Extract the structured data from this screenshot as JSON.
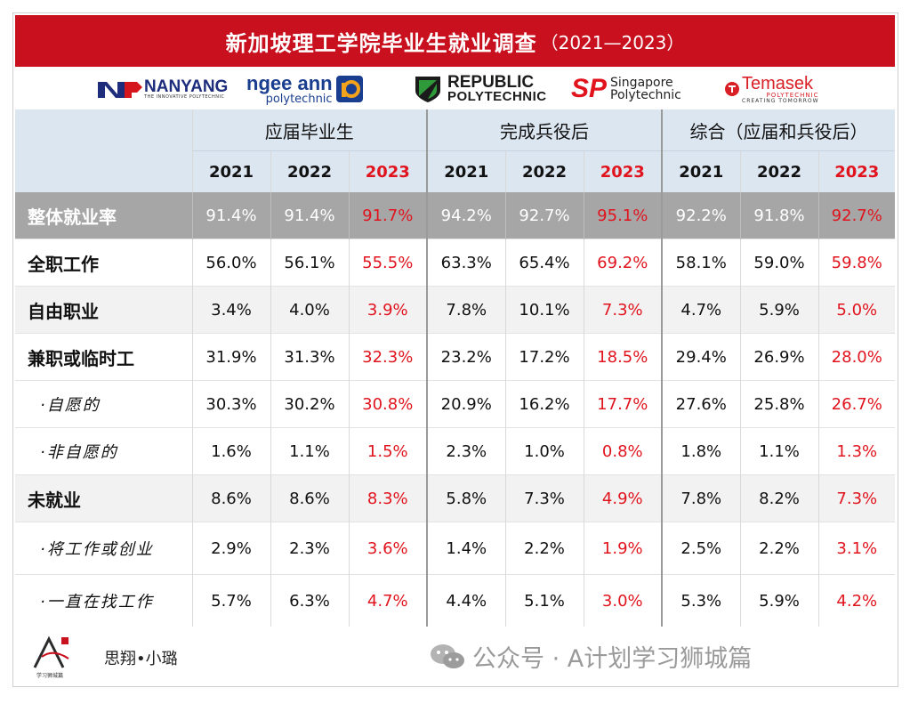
{
  "title": {
    "main": "新加坡理工学院毕业生就业调查",
    "years": "（2021—2023）"
  },
  "logos": [
    {
      "name": "NYP",
      "text": "NANYANG",
      "tag": "THE INNOVATIVE POLYTECHNIC"
    },
    {
      "name": "ngee ann",
      "text": "polytechnic"
    },
    {
      "name": "REPUBLIC",
      "text": "POLYTECHNIC"
    },
    {
      "name": "SP",
      "text1": "Singapore",
      "text2": "Polytechnic"
    },
    {
      "name": "Temasek",
      "text": "POLYTECHNIC",
      "tag": "CREATING TOMORROW"
    }
  ],
  "groups": [
    "应届毕业生",
    "完成兵役后",
    "综合（应届和兵役后）"
  ],
  "years": [
    "2021",
    "2022",
    "2023"
  ],
  "rows": [
    {
      "label": "整体就业率",
      "values": [
        "91.4%",
        "91.4%",
        "91.7%",
        "94.2%",
        "92.7%",
        "95.1%",
        "92.2%",
        "91.8%",
        "92.7%"
      ]
    },
    {
      "label": "全职工作",
      "values": [
        "56.0%",
        "56.1%",
        "55.5%",
        "63.3%",
        "65.4%",
        "69.2%",
        "58.1%",
        "59.0%",
        "59.8%"
      ]
    },
    {
      "label": "自由职业",
      "values": [
        "3.4%",
        "4.0%",
        "3.9%",
        "7.8%",
        "10.1%",
        "7.3%",
        "4.7%",
        "5.9%",
        "5.0%"
      ]
    },
    {
      "label": "兼职或临时工",
      "values": [
        "31.9%",
        "31.3%",
        "32.3%",
        "23.2%",
        "17.2%",
        "18.5%",
        "29.4%",
        "26.9%",
        "28.0%"
      ]
    },
    {
      "label": "·自愿的",
      "values": [
        "30.3%",
        "30.2%",
        "30.8%",
        "20.9%",
        "16.2%",
        "17.7%",
        "27.6%",
        "25.8%",
        "26.7%"
      ]
    },
    {
      "label": "·非自愿的",
      "values": [
        "1.6%",
        "1.1%",
        "1.5%",
        "2.3%",
        "1.0%",
        "0.8%",
        "1.8%",
        "1.1%",
        "1.3%"
      ]
    },
    {
      "label": "未就业",
      "values": [
        "8.6%",
        "8.6%",
        "8.3%",
        "5.8%",
        "7.3%",
        "4.9%",
        "7.8%",
        "8.2%",
        "7.3%"
      ]
    },
    {
      "label": "·将工作或创业",
      "values": [
        "2.9%",
        "2.3%",
        "3.6%",
        "1.4%",
        "2.2%",
        "1.9%",
        "2.5%",
        "2.2%",
        "3.1%"
      ]
    },
    {
      "label": "·一直在找工作",
      "values": [
        "5.7%",
        "6.3%",
        "4.7%",
        "4.4%",
        "5.1%",
        "3.0%",
        "5.3%",
        "5.9%",
        "4.2%"
      ]
    }
  ],
  "footer": {
    "author": "思翔•小璐",
    "logo_caption": "学习狮城篇",
    "wechat": "公众号 · A计划学习狮城篇"
  },
  "colors": {
    "title_bg": "#c8101e",
    "header_bg": "#dce6f1",
    "overall_row_bg": "#a6a6a6",
    "highlight": "#e1141e"
  }
}
